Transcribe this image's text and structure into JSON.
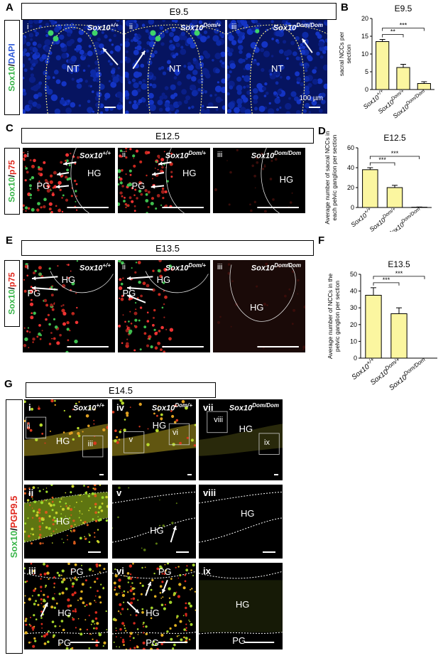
{
  "panels": {
    "A": {
      "letter": "A",
      "stage": "E9.5",
      "side_green": "Sox10",
      "side_sep": "/",
      "side_blue": "DAPI",
      "images": [
        {
          "num": "i",
          "genotype": "Sox10+/+",
          "label": "NT"
        },
        {
          "num": "ii",
          "genotype": "Sox10Dom/+",
          "label": "NT"
        },
        {
          "num": "iii",
          "genotype": "Sox10Dom/Dom",
          "label": "NT"
        }
      ],
      "scale": "100 µm"
    },
    "C": {
      "letter": "C",
      "stage": "E12.5",
      "side_green": "Sox10",
      "side_sep": "/",
      "side_red": "p75",
      "images": [
        {
          "num": "i",
          "genotype": "Sox10+/+",
          "labels": [
            "PG",
            "HG"
          ]
        },
        {
          "num": "ii",
          "genotype": "Sox10Dom/+",
          "labels": [
            "PG",
            "HG"
          ]
        },
        {
          "num": "iii",
          "genotype": "Sox10Dom/Dom",
          "labels": [
            "HG"
          ]
        }
      ]
    },
    "E": {
      "letter": "E",
      "stage": "E13.5",
      "side_green": "Sox10",
      "side_sep": "/",
      "side_red": "p75",
      "images": [
        {
          "num": "i",
          "genotype": "Sox10+/+",
          "labels": [
            "HG",
            "PG"
          ]
        },
        {
          "num": "ii",
          "genotype": "Sox10Dom/+",
          "labels": [
            "HG",
            "PG"
          ]
        },
        {
          "num": "iii",
          "genotype": "Sox10Dom/Dom",
          "labels": [
            "HG"
          ]
        }
      ]
    },
    "G": {
      "letter": "G",
      "stage": "E14.5",
      "side_green": "Sox10",
      "side_sep": "/",
      "side_red": "PGP9.5",
      "top": [
        {
          "num": "i",
          "genotype": "Sox10+/+",
          "labels": [
            "ii",
            "iii",
            "HG"
          ]
        },
        {
          "num": "iv",
          "genotype": "Sox10Dom/+",
          "labels": [
            "v",
            "vi",
            "HG"
          ]
        },
        {
          "num": "vii",
          "genotype": "Sox10Dom/Dom",
          "labels": [
            "viii",
            "ix",
            "HG"
          ]
        }
      ],
      "mid": [
        {
          "num": "ii",
          "label": "HG"
        },
        {
          "num": "v",
          "label": "HG"
        },
        {
          "num": "viii",
          "label": "HG"
        }
      ],
      "bot": [
        {
          "num": "iii",
          "labels": [
            "PG",
            "HG",
            "PG"
          ]
        },
        {
          "num": "vi",
          "labels": [
            "PG",
            "HG",
            "PG"
          ]
        },
        {
          "num": "ix",
          "labels": [
            "HG",
            "PG"
          ]
        }
      ]
    }
  },
  "chart_data": [
    {
      "letter": "B",
      "type": "bar",
      "title": "E9.5",
      "ylabel": "Average number of sacral NCCs per section",
      "categories": [
        "Sox10+/+",
        "Sox10Dom/+",
        "Sox10Dom/Dom"
      ],
      "values": [
        13.5,
        6.2,
        1.7
      ],
      "errors": [
        0.6,
        0.9,
        0.5
      ],
      "ylim": [
        0,
        20
      ],
      "yticks": [
        "0",
        "5",
        "10",
        "15",
        "20"
      ],
      "sig": [
        "**",
        "***"
      ],
      "bar_color": "#fbf6a0"
    },
    {
      "letter": "D",
      "type": "bar",
      "title": "E12.5",
      "ylabel": "Average number of sacral NCCs in each pelvic ganglion per section",
      "categories": [
        "Sox10+/+",
        "Sox10Dom/+",
        "Sox10Dom/Dom"
      ],
      "values": [
        38,
        20,
        0.3
      ],
      "errors": [
        2,
        2.3,
        0.2
      ],
      "ylim": [
        0,
        60
      ],
      "yticks": [
        "0",
        "20",
        "40",
        "60"
      ],
      "sig": [
        "***",
        "***"
      ],
      "bar_color": "#fbf6a0"
    },
    {
      "letter": "F",
      "type": "bar",
      "title": "E13.5",
      "ylabel": "Average number of NCCs in the pelvic ganglion per section",
      "categories": [
        "Sox10+/+",
        "Sox10Dom/+",
        "Sox10Dom/Dom"
      ],
      "values": [
        37.5,
        26.5,
        0
      ],
      "errors": [
        4.5,
        3.5,
        0
      ],
      "ylim": [
        0,
        50
      ],
      "yticks": [
        "0",
        "10",
        "20",
        "30",
        "40",
        "50"
      ],
      "sig": [
        "***",
        "***"
      ],
      "bar_color": "#fbf6a0"
    }
  ]
}
